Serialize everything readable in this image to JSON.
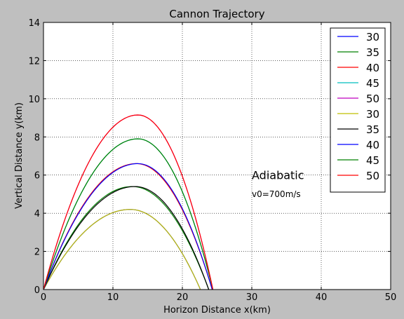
{
  "chart_data": {
    "type": "line",
    "title": "Cannon Trajectory",
    "xlabel": "Horizon Distance x(km)",
    "ylabel": "Vertical Distance y(km)",
    "xlim": [
      0,
      50
    ],
    "ylim": [
      0,
      14
    ],
    "xticks": [
      "0",
      "10",
      "20",
      "30",
      "40",
      "50"
    ],
    "yticks": [
      "0",
      "2",
      "4",
      "6",
      "8",
      "10",
      "12",
      "14"
    ],
    "grid": true,
    "legend_position": "top-right",
    "annotations": [
      {
        "text": "Adiabatic",
        "x": 30,
        "y": 6.0
      },
      {
        "text": "v0=700m/s",
        "x": 30,
        "y": 5.0
      }
    ],
    "series": [
      {
        "name": "30",
        "color": "#0000ff",
        "peak_x": 12.5,
        "peak_y": 4.2,
        "range": 22.6
      },
      {
        "name": "35",
        "color": "#008000",
        "peak_x": 12.8,
        "peak_y": 5.4,
        "range": 23.8
      },
      {
        "name": "40",
        "color": "#ff0000",
        "peak_x": 13.4,
        "peak_y": 6.6,
        "range": 24.3
      },
      {
        "name": "45",
        "color": "#00bfbf",
        "peak_x": 13.6,
        "peak_y": 7.9,
        "range": 24.4
      },
      {
        "name": "50",
        "color": "#bf00bf",
        "peak_x": 13.6,
        "peak_y": 9.15,
        "range": 24.4
      },
      {
        "name": "30",
        "color": "#bfbf00",
        "peak_x": 12.5,
        "peak_y": 4.2,
        "range": 22.6
      },
      {
        "name": "35",
        "color": "#000000",
        "peak_x": 13.2,
        "peak_y": 5.4,
        "range": 23.8
      },
      {
        "name": "40",
        "color": "#0000ff",
        "peak_x": 13.6,
        "peak_y": 6.6,
        "range": 24.3
      },
      {
        "name": "45",
        "color": "#008000",
        "peak_x": 13.6,
        "peak_y": 7.9,
        "range": 24.4
      },
      {
        "name": "50",
        "color": "#ff0000",
        "peak_x": 13.6,
        "peak_y": 9.15,
        "range": 24.4
      }
    ]
  }
}
